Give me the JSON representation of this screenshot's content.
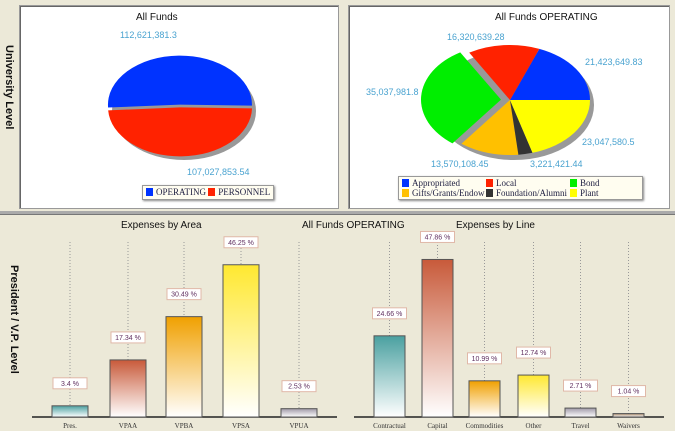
{
  "sections": {
    "university": "University Level",
    "president": "President / V.P. Level"
  },
  "pie1": {
    "title": "All Funds",
    "slices": [
      {
        "name": "OPERATING",
        "value": 112621381.3,
        "label": "112,621,381.3",
        "color": "#0033ff"
      },
      {
        "name": "PERSONNEL",
        "value": 107027853.54,
        "label": "107,027,853.54",
        "color": "#ff2200"
      }
    ]
  },
  "pie2": {
    "title": "All Funds  OPERATING",
    "slices": [
      {
        "name": "Appropriated",
        "value": 21423649.83,
        "label": "21,423,649.83",
        "color": "#0033ff"
      },
      {
        "name": "Local",
        "value": 16320639.28,
        "label": "16,320,639.28",
        "color": "#ff2200"
      },
      {
        "name": "Bond",
        "value": 35037981.8,
        "label": "35,037,981.8",
        "color": "#00ee00"
      },
      {
        "name": "Gifts/Grants/Endow",
        "value": 13570108.45,
        "label": "13,570,108.45",
        "color": "#ffc000"
      },
      {
        "name": "Foundation/Alumni",
        "value": 3221421.44,
        "label": "3,221,421.44",
        "color": "#333333"
      },
      {
        "name": "Plant",
        "value": 23047580.5,
        "label": "23,047,580.5",
        "color": "#ffff00"
      }
    ]
  },
  "header_center": "All Funds  OPERATING",
  "chart_data": [
    {
      "type": "bar",
      "title": "Expenses by Area",
      "categories": [
        "Pres.",
        "VPAA",
        "VPBA",
        "VPSA",
        "VPUA"
      ],
      "values": [
        3.4,
        17.34,
        30.49,
        46.25,
        2.53
      ],
      "labels": [
        "3.4 %",
        "17.34 %",
        "30.49 %",
        "46.25 %",
        "2.53 %"
      ],
      "colors": [
        "#4aa0a0",
        "#c85a3a",
        "#f0a000",
        "#ffe830",
        "#a09aa8"
      ],
      "ylim": [
        0,
        48
      ]
    },
    {
      "type": "bar",
      "title": "Expenses by Line",
      "categories": [
        "Contractual",
        "Capital",
        "Commodities",
        "Other",
        "Travel",
        "Waivers"
      ],
      "values": [
        24.66,
        47.86,
        10.99,
        12.74,
        2.71,
        1.04
      ],
      "labels": [
        "24.66 %",
        "47.86 %",
        "10.99 %",
        "12.74 %",
        "2.71 %",
        "1.04 %"
      ],
      "colors": [
        "#4aa0a0",
        "#c85a3a",
        "#f0a000",
        "#ffe830",
        "#a09aa8",
        "#a08060"
      ],
      "ylim": [
        0,
        48
      ]
    }
  ]
}
